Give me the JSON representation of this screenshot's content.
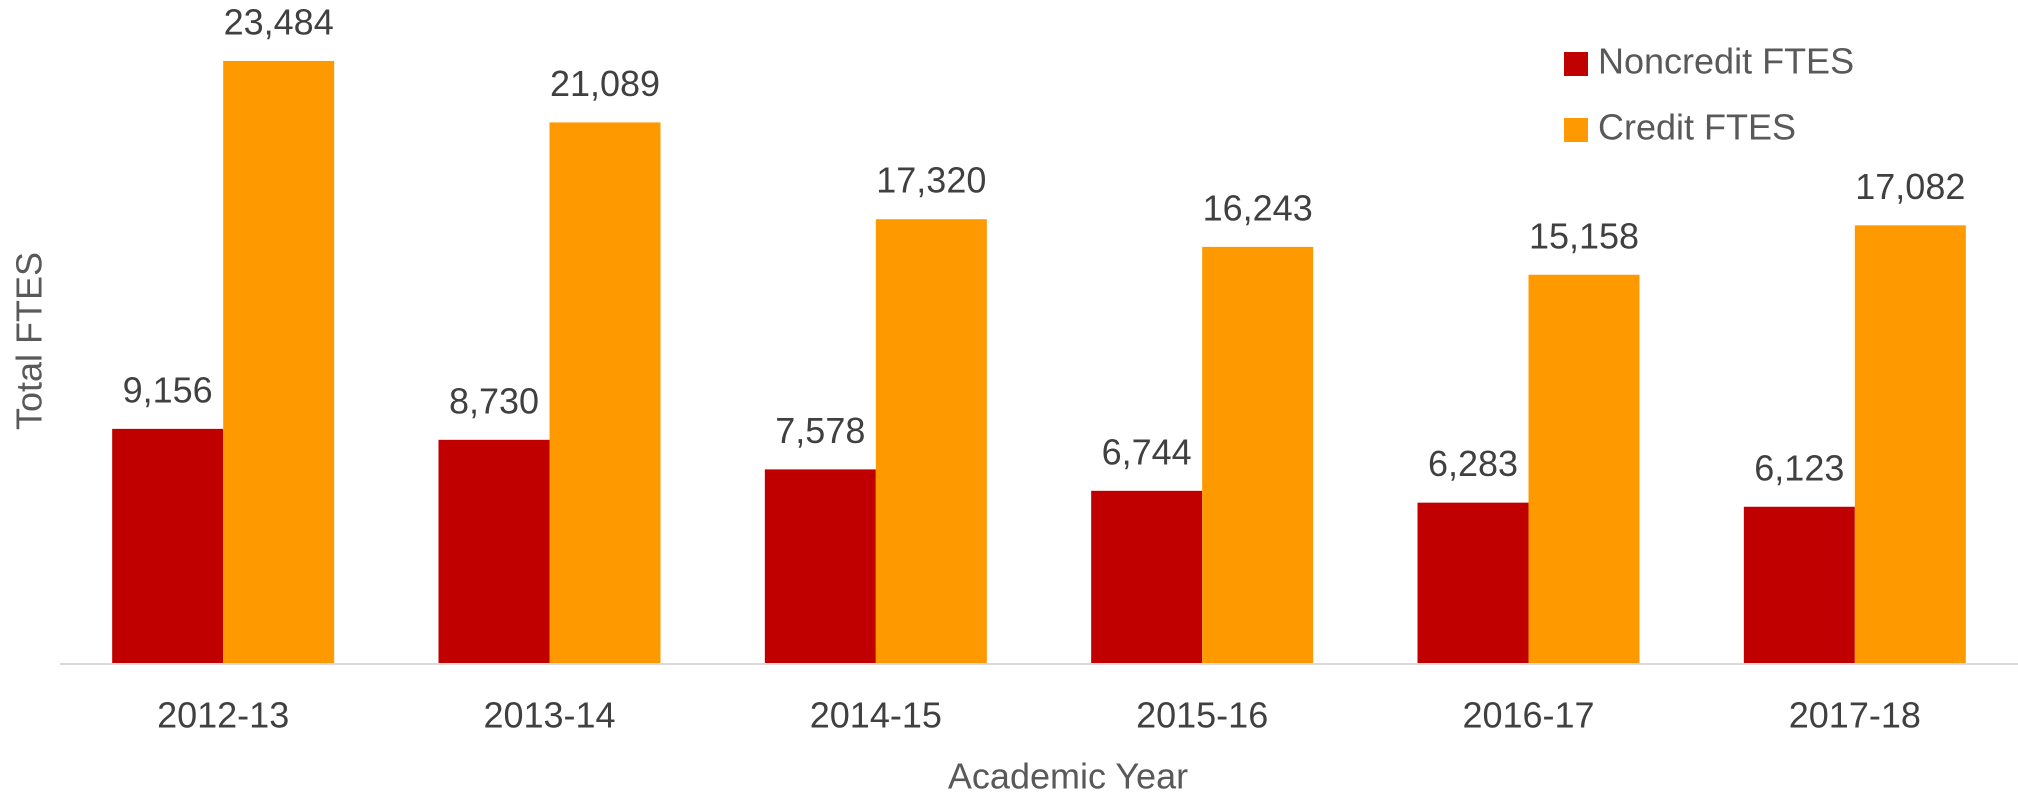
{
  "chart_data": {
    "type": "bar",
    "x_label": "Academic Year",
    "y_label": "Total FTES",
    "categories": [
      "2012-13",
      "2013-14",
      "2014-15",
      "2015-16",
      "2016-17",
      "2017-18"
    ],
    "series": [
      {
        "name": "Noncredit FTES",
        "color": "#c00000",
        "values": [
          9156,
          8730,
          7578,
          6744,
          6283,
          6123
        ],
        "value_labels": [
          "9,156",
          "8,730",
          "7,578",
          "6,744",
          "6,283",
          "6,123"
        ]
      },
      {
        "name": "Credit FTES",
        "color": "#ff9900",
        "values": [
          23484,
          21089,
          17320,
          16243,
          15158,
          17082
        ],
        "value_labels": [
          "23,484",
          "21,089",
          "17,320",
          "16,243",
          "15,158",
          "17,082"
        ]
      }
    ],
    "ylim": [
      0,
      25000
    ],
    "legend": "top-right"
  }
}
